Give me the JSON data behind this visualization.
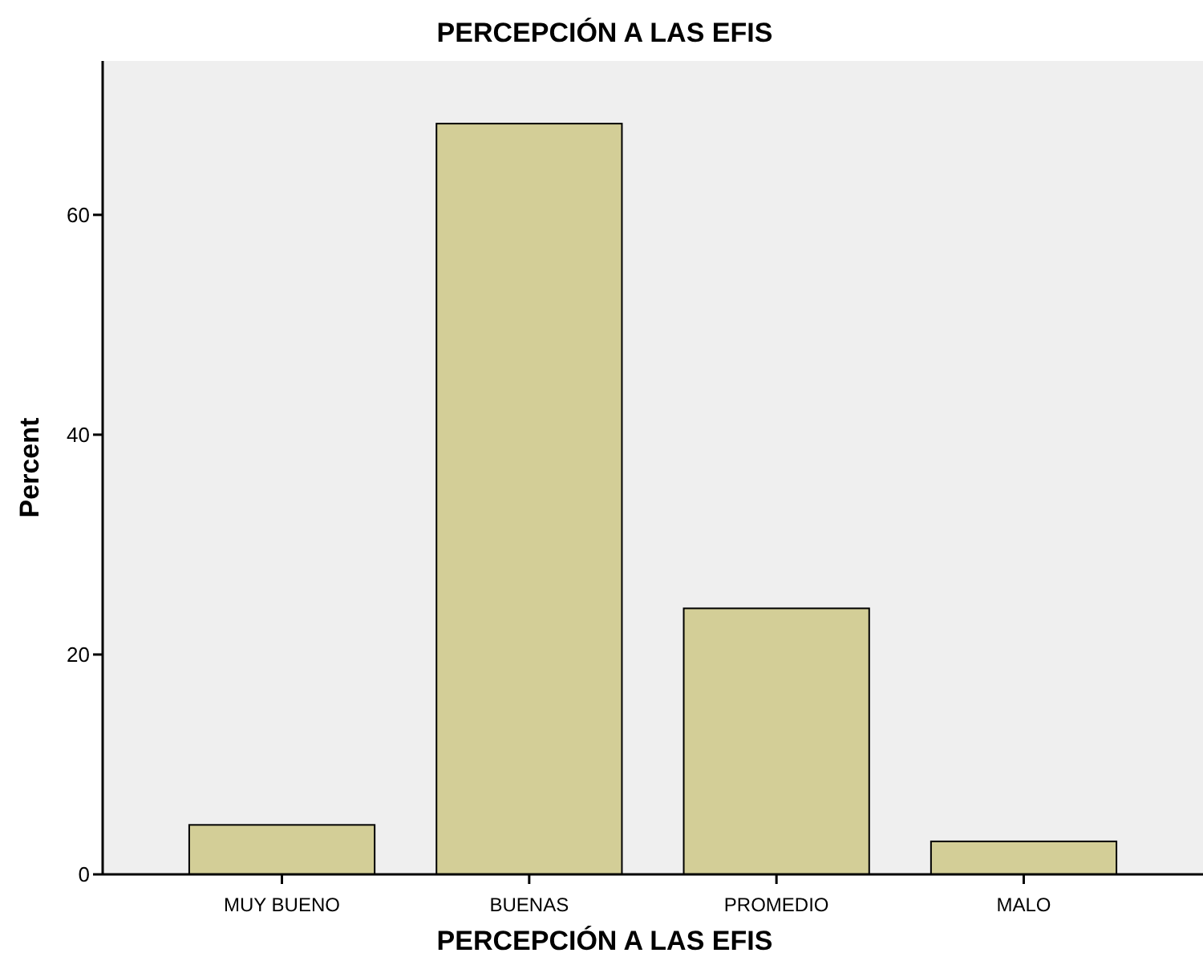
{
  "chart_data": {
    "type": "bar",
    "title": "PERCEPCIÓN A LAS EFIS",
    "xlabel": "PERCEPCIÓN A LAS EFIS",
    "ylabel": "Percent",
    "categories": [
      "MUY BUENO",
      "BUENAS",
      "PROMEDIO",
      "MALO"
    ],
    "values": [
      4.5,
      68.3,
      24.2,
      3.0
    ],
    "color": "#d3ce97",
    "ylim": [
      0,
      74
    ],
    "yticks": [
      0,
      20,
      40,
      60
    ],
    "grid": false
  }
}
